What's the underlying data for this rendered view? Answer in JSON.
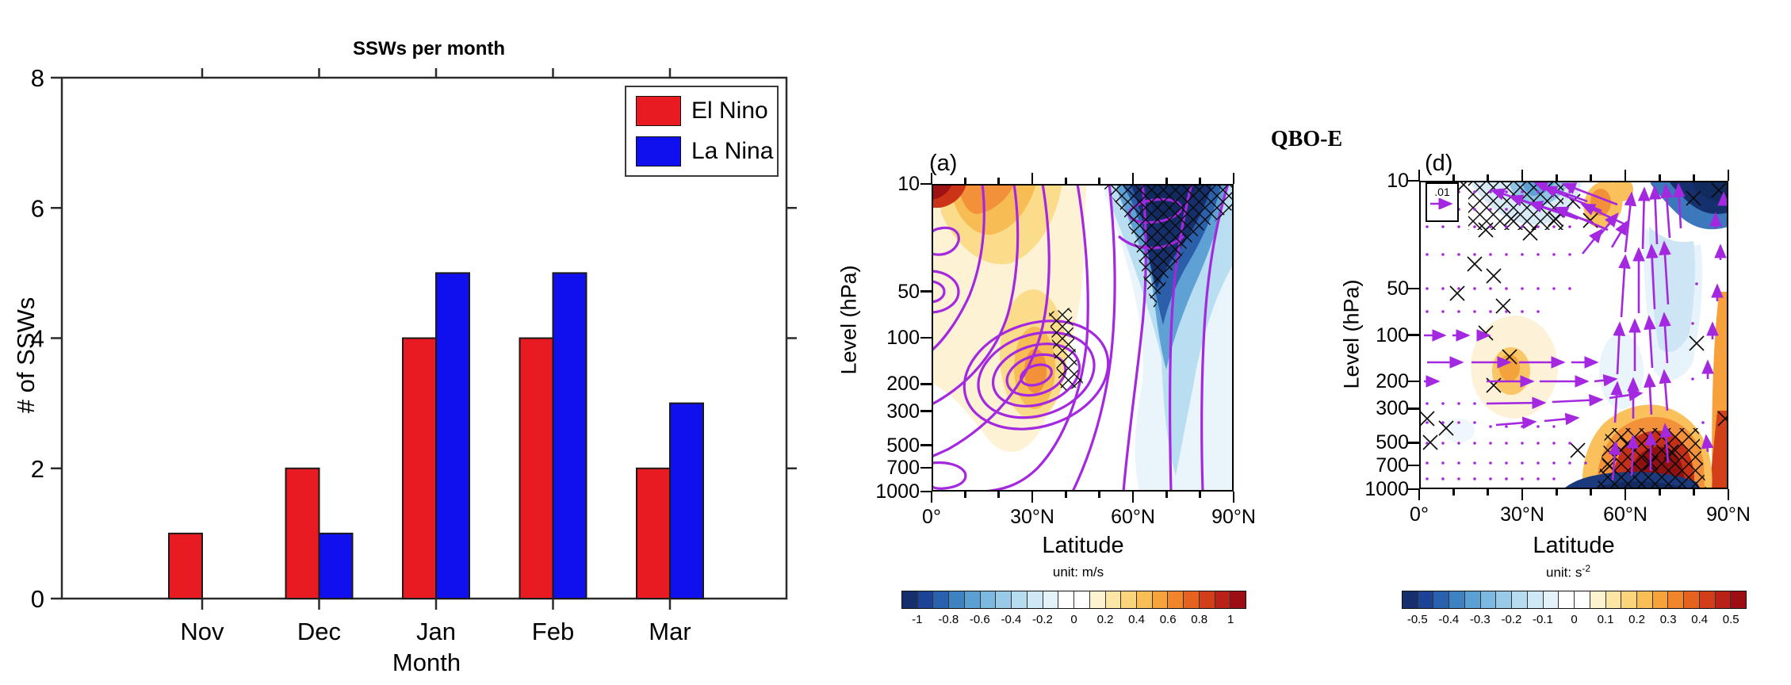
{
  "figure": {
    "background": "#ffffff"
  },
  "bar_chart": {
    "title": "SSWs per month",
    "xlabel": "Month",
    "ylabel": "# of SSWs",
    "categories": [
      "Nov",
      "Dec",
      "Jan",
      "Feb",
      "Mar"
    ],
    "y_tick_labels": [
      "0",
      "2",
      "4",
      "6",
      "8"
    ],
    "ylim": [
      0,
      8
    ],
    "series": [
      {
        "name": "El Nino",
        "color": "#E81B23",
        "values": [
          1,
          2,
          4,
          4,
          2
        ]
      },
      {
        "name": "La Nina",
        "color": "#1010EF",
        "values": [
          0,
          1,
          5,
          5,
          3
        ]
      }
    ]
  },
  "center_title": "QBO-E",
  "panel_a": {
    "label": "(a)",
    "ylabel": "Level (hPa)",
    "xlabel": "Latitude",
    "unit": "unit: m/s",
    "y_ticks": [
      "10",
      "50",
      "100",
      "200",
      "300",
      "500",
      "700",
      "1000"
    ],
    "x_tick_labels": [
      "0°",
      "30°N",
      "60°N",
      "90°N"
    ],
    "colorbar_labels": [
      "-1",
      "-0.8",
      "-0.6",
      "-0.4",
      "-0.2",
      "0",
      "0.2",
      "0.4",
      "0.6",
      "0.8",
      "1"
    ]
  },
  "panel_d": {
    "label": "(d)",
    "ylabel": "Level (hPa)",
    "xlabel": "Latitude",
    "unit_base": "unit: s",
    "unit_sup": "-2",
    "ref_arrow_label": ".01",
    "y_ticks": [
      "10",
      "50",
      "100",
      "200",
      "300",
      "500",
      "700",
      "1000"
    ],
    "x_tick_labels": [
      "0°",
      "30°N",
      "60°N",
      "90°N"
    ],
    "colorbar_labels": [
      "-0.5",
      "-0.4",
      "-0.3",
      "-0.2",
      "-0.1",
      "0",
      "0.1",
      "0.2",
      "0.3",
      "0.4",
      "0.5"
    ]
  },
  "colorbar_colors": [
    "#16306E",
    "#1D4396",
    "#2A61AE",
    "#3F82C2",
    "#5BA0D3",
    "#7CB8DF",
    "#99CBE9",
    "#B6DCF0",
    "#CFE8F6",
    "#E4F2FA",
    "#FFFFFF",
    "#FFFFFF",
    "#FEF3CF",
    "#FCE5A5",
    "#FBD47B",
    "#F9BE56",
    "#F7A33B",
    "#F1852C",
    "#E5621F",
    "#D33E1A",
    "#BA2217",
    "#9C0E13"
  ],
  "accent_colors": {
    "contour_purple": "#A428E0",
    "hatch_black": "#0A0A0A"
  },
  "chart_data": [
    {
      "type": "bar",
      "title": "SSWs per month",
      "categories": [
        "Nov",
        "Dec",
        "Jan",
        "Feb",
        "Mar"
      ],
      "series": [
        {
          "name": "El Nino",
          "color": "#E81B23",
          "values": [
            1,
            2,
            4,
            4,
            2
          ]
        },
        {
          "name": "La Nina",
          "color": "#1010EF",
          "values": [
            0,
            1,
            5,
            5,
            3
          ]
        }
      ],
      "xlabel": "Month",
      "ylabel": "# of SSWs",
      "ylim": [
        0,
        8
      ],
      "y_ticks": [
        0,
        2,
        4,
        6,
        8
      ],
      "grid": false,
      "legend_position": "top-right"
    },
    {
      "type": "heatmap",
      "panel": "(a)",
      "group_title": "QBO-E",
      "xlabel": "Latitude",
      "ylabel": "Level (hPa)",
      "x_ticks_deg_north": [
        0,
        30,
        60,
        90
      ],
      "y_ticks_hpa": [
        10,
        50,
        100,
        200,
        300,
        500,
        700,
        1000
      ],
      "y_scale": "log",
      "colorbar_unit": "m/s",
      "colorbar_range": [
        -1,
        1
      ],
      "colorbar_step": 0.2,
      "overlay": "purple line contours + black cross-hatching (significance)",
      "description": "Zonal-mean anomaly section: warm (positive, orange/red) anomalies 0-45N strongest near 10 hPa at low latitudes and near 30-40N 100-250 hPa (center of closed purple contours); strong negative (dark navy, hatched) anomalies 50-90N between 10 and 100 hPa extending as a blue tongue toward 60N 300 hPa."
    },
    {
      "type": "vector_field",
      "panel": "(d)",
      "group_title": "QBO-E",
      "xlabel": "Latitude",
      "ylabel": "Level (hPa)",
      "x_ticks_deg_north": [
        0,
        30,
        60,
        90
      ],
      "y_ticks_hpa": [
        10,
        50,
        100,
        200,
        300,
        500,
        700,
        1000
      ],
      "y_scale": "log",
      "colorbar_unit": "s-2",
      "colorbar_range": [
        -0.5,
        0.5
      ],
      "colorbar_step": 0.1,
      "reference_vector_label": ".01",
      "overlay": "purple EP-flux style vectors + black cross-hatching",
      "description": "Shaded forcing with vectors: equatorward half mostly small eastward vectors; long upward vectors 55-75N through the depth of the plot; up-left tilted vectors 30-55N near 10-30 hPa over hatched light-blue shading; positive (dark red) cell 55-80N 400-800 hPa; negative (navy) cells near 75-90N 10-25 hPa and 50-85N near the surface."
    }
  ]
}
